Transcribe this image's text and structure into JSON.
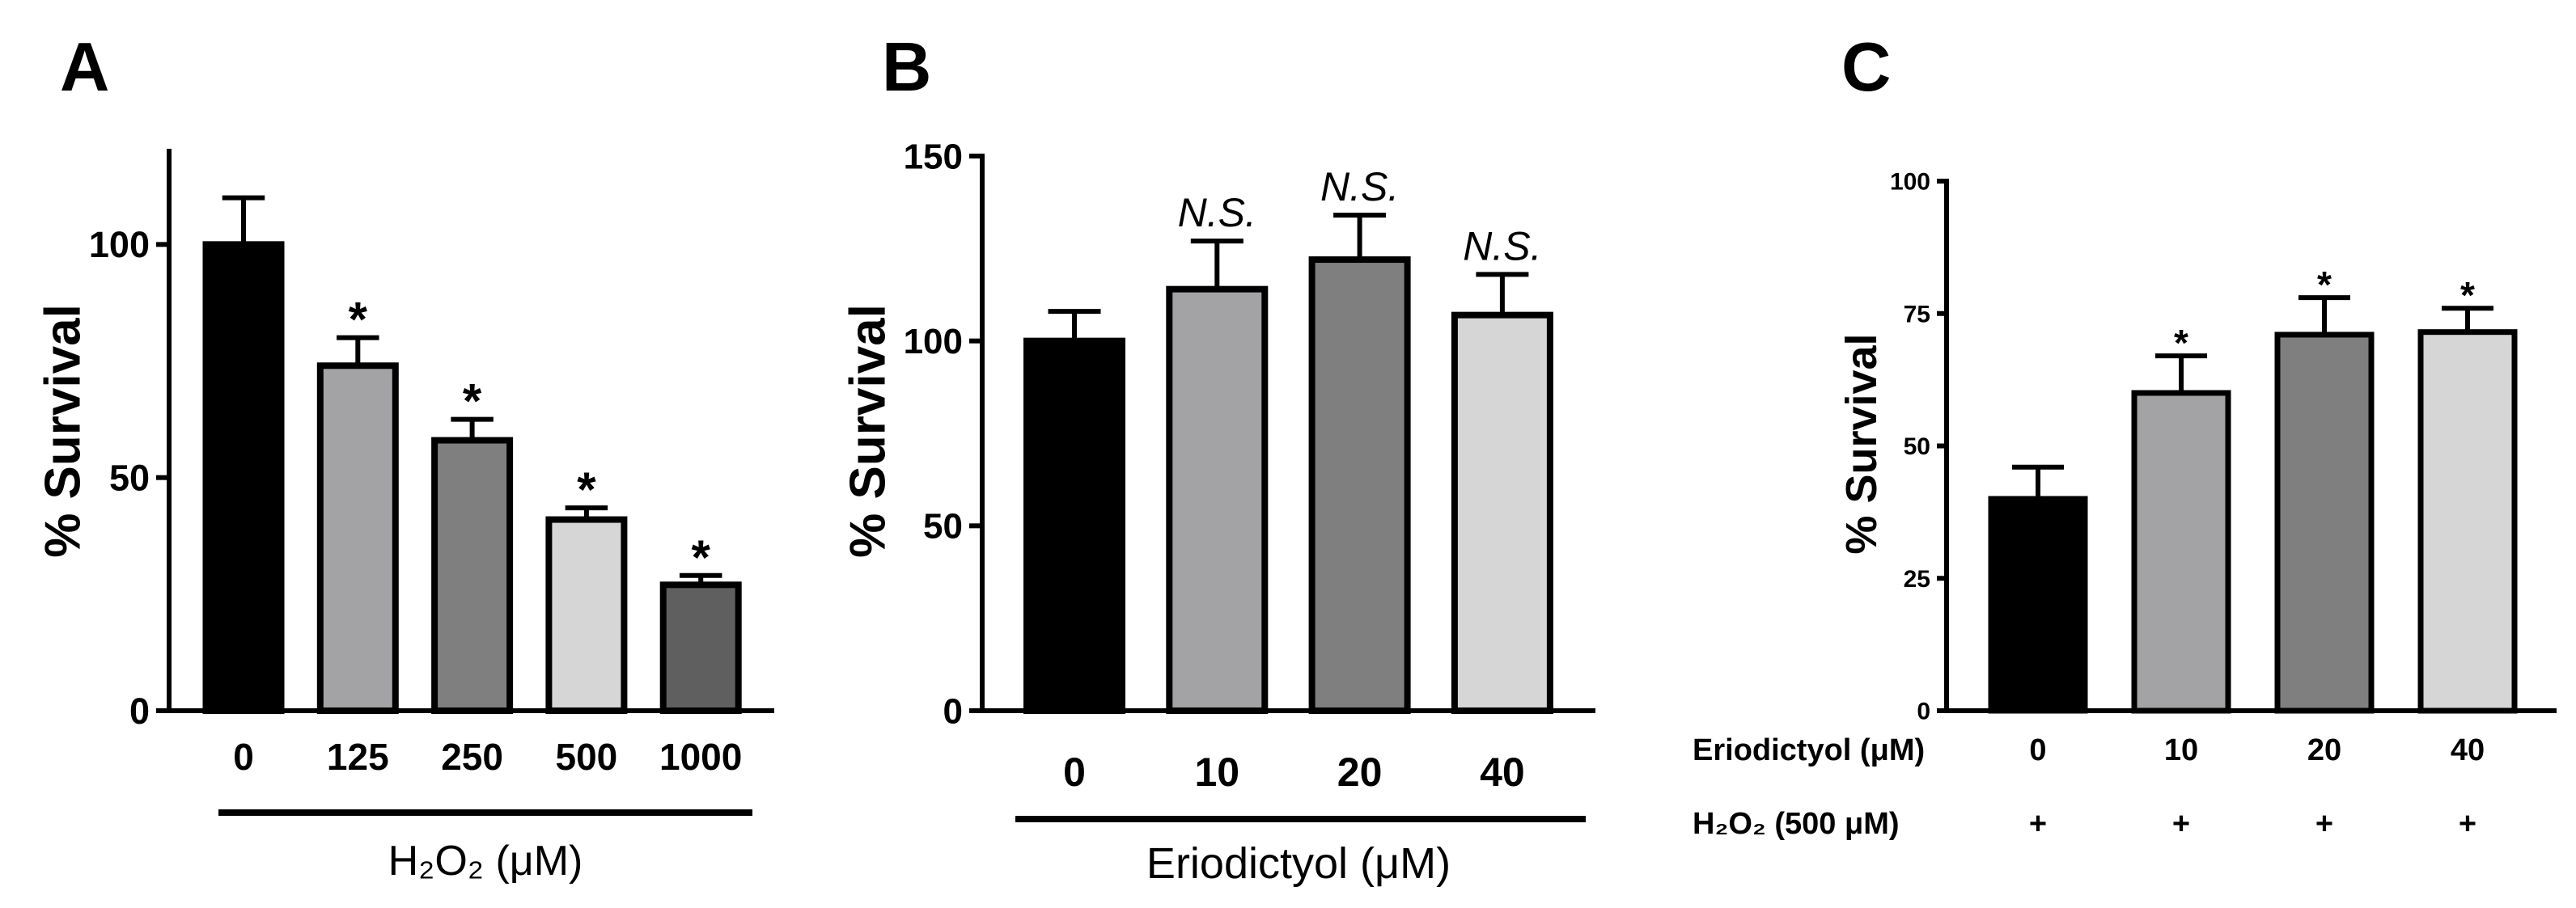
{
  "chart_data": [
    {
      "panel_label": "A",
      "type": "bar",
      "categories": [
        "0",
        "125",
        "250",
        "500",
        "1000"
      ],
      "values": [
        100,
        74,
        58,
        41,
        27
      ],
      "error_plus": [
        10,
        6,
        4.5,
        2.5,
        2
      ],
      "annotations": [
        "",
        "*",
        "*",
        "*",
        "*"
      ],
      "bar_colors": [
        "#000000",
        "#a3a3a6",
        "#7f7f7f",
        "#d6d6d6",
        "#5f5f5f"
      ],
      "ylabel": "% Survival",
      "xlabel": "H₂O₂ (μM)",
      "ylim": [
        0,
        120
      ],
      "yticks": [
        0,
        50,
        100
      ],
      "grid": false,
      "legend": "none"
    },
    {
      "panel_label": "B",
      "type": "bar",
      "categories": [
        "0",
        "10",
        "20",
        "40"
      ],
      "values": [
        100,
        114,
        122,
        107
      ],
      "error_plus": [
        8,
        13,
        12,
        11
      ],
      "annotations": [
        "",
        "N.S.",
        "N.S.",
        "N.S."
      ],
      "bar_colors": [
        "#000000",
        "#a3a3a6",
        "#7f7f7f",
        "#d6d6d6"
      ],
      "ylabel": "% Survival",
      "xlabel": "Eriodictyol (μM)",
      "ylim": [
        0,
        150
      ],
      "yticks": [
        0,
        50,
        100,
        150
      ],
      "grid": false,
      "legend": "none"
    },
    {
      "panel_label": "C",
      "type": "bar",
      "categories": [
        "0",
        "10",
        "20",
        "40"
      ],
      "category_label": "Eriodictyol (μM)",
      "treatment_row": {
        "label": "H₂O₂ (500 μM)",
        "values": [
          "+",
          "+",
          "+",
          "+"
        ]
      },
      "values": [
        40,
        60,
        71,
        71.5
      ],
      "error_plus": [
        6,
        7,
        7,
        4.5
      ],
      "annotations": [
        "",
        "*",
        "*",
        "*"
      ],
      "bar_colors": [
        "#000000",
        "#a3a3a6",
        "#7f7f7f",
        "#d6d6d6"
      ],
      "ylabel": "% Survival",
      "ylim": [
        0,
        100
      ],
      "yticks": [
        0,
        25,
        50,
        75,
        100
      ],
      "grid": false,
      "legend": "none"
    }
  ]
}
